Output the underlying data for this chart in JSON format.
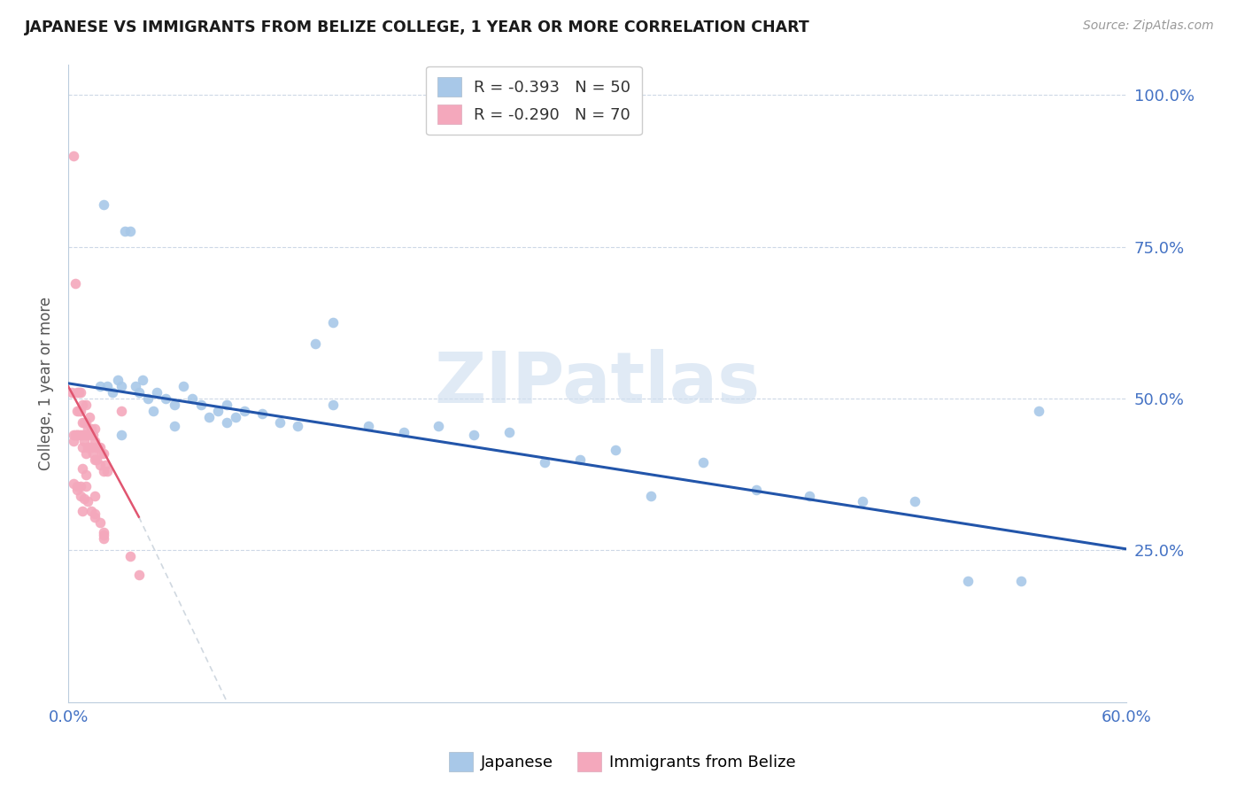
{
  "title": "JAPANESE VS IMMIGRANTS FROM BELIZE COLLEGE, 1 YEAR OR MORE CORRELATION CHART",
  "source": "Source: ZipAtlas.com",
  "ylabel": "College, 1 year or more",
  "ytick_vals": [
    0.25,
    0.5,
    0.75,
    1.0
  ],
  "ytick_labels": [
    "25.0%",
    "50.0%",
    "75.0%",
    "100.0%"
  ],
  "xlim": [
    0.0,
    0.6
  ],
  "ylim": [
    0.0,
    1.05
  ],
  "japanese_color": "#a8c8e8",
  "belize_color": "#f4a8bc",
  "trend_jp_color": "#2255aa",
  "trend_bz_solid_color": "#e05570",
  "trend_bz_dashed_color": "#d0d8e0",
  "watermark_text": "ZIPatlas",
  "watermark_color": "#d0dff0",
  "legend1_label": "R = -0.393   N = 50",
  "legend2_label": "R = -0.290   N = 70",
  "bottom_label1": "Japanese",
  "bottom_label2": "Immigrants from Belize",
  "jp_x": [
    0.018,
    0.02,
    0.022,
    0.025,
    0.028,
    0.03,
    0.032,
    0.035,
    0.038,
    0.04,
    0.042,
    0.045,
    0.048,
    0.05,
    0.055,
    0.06,
    0.065,
    0.07,
    0.075,
    0.08,
    0.085,
    0.09,
    0.095,
    0.1,
    0.11,
    0.12,
    0.13,
    0.14,
    0.15,
    0.17,
    0.19,
    0.21,
    0.23,
    0.25,
    0.27,
    0.29,
    0.31,
    0.33,
    0.36,
    0.39,
    0.42,
    0.45,
    0.48,
    0.51,
    0.54,
    0.03,
    0.06,
    0.09,
    0.15,
    0.55
  ],
  "jp_y": [
    0.52,
    0.82,
    0.52,
    0.51,
    0.53,
    0.52,
    0.775,
    0.775,
    0.52,
    0.51,
    0.53,
    0.5,
    0.48,
    0.51,
    0.5,
    0.49,
    0.52,
    0.5,
    0.49,
    0.47,
    0.48,
    0.49,
    0.47,
    0.48,
    0.475,
    0.46,
    0.455,
    0.59,
    0.49,
    0.455,
    0.445,
    0.455,
    0.44,
    0.445,
    0.395,
    0.4,
    0.415,
    0.34,
    0.395,
    0.35,
    0.34,
    0.33,
    0.33,
    0.2,
    0.2,
    0.44,
    0.455,
    0.46,
    0.625,
    0.48
  ],
  "bz_x": [
    0.002,
    0.003,
    0.003,
    0.004,
    0.004,
    0.005,
    0.005,
    0.005,
    0.006,
    0.006,
    0.006,
    0.007,
    0.007,
    0.007,
    0.008,
    0.008,
    0.008,
    0.008,
    0.009,
    0.009,
    0.01,
    0.01,
    0.01,
    0.01,
    0.011,
    0.011,
    0.012,
    0.012,
    0.012,
    0.013,
    0.013,
    0.014,
    0.014,
    0.015,
    0.015,
    0.015,
    0.016,
    0.016,
    0.017,
    0.018,
    0.018,
    0.019,
    0.02,
    0.02,
    0.021,
    0.022,
    0.003,
    0.005,
    0.007,
    0.009,
    0.011,
    0.013,
    0.015,
    0.018,
    0.02,
    0.005,
    0.008,
    0.01,
    0.015,
    0.02,
    0.003,
    0.005,
    0.008,
    0.03,
    0.035,
    0.04,
    0.007,
    0.01,
    0.015,
    0.02
  ],
  "bz_y": [
    0.51,
    0.9,
    0.44,
    0.69,
    0.44,
    0.51,
    0.48,
    0.44,
    0.51,
    0.48,
    0.44,
    0.51,
    0.48,
    0.44,
    0.49,
    0.46,
    0.44,
    0.42,
    0.46,
    0.43,
    0.49,
    0.46,
    0.44,
    0.41,
    0.45,
    0.42,
    0.47,
    0.44,
    0.42,
    0.45,
    0.42,
    0.44,
    0.41,
    0.45,
    0.43,
    0.4,
    0.42,
    0.4,
    0.42,
    0.42,
    0.39,
    0.41,
    0.41,
    0.38,
    0.39,
    0.38,
    0.36,
    0.35,
    0.34,
    0.335,
    0.33,
    0.315,
    0.305,
    0.295,
    0.28,
    0.44,
    0.385,
    0.375,
    0.34,
    0.27,
    0.43,
    0.355,
    0.315,
    0.48,
    0.24,
    0.21,
    0.355,
    0.355,
    0.31,
    0.275
  ]
}
